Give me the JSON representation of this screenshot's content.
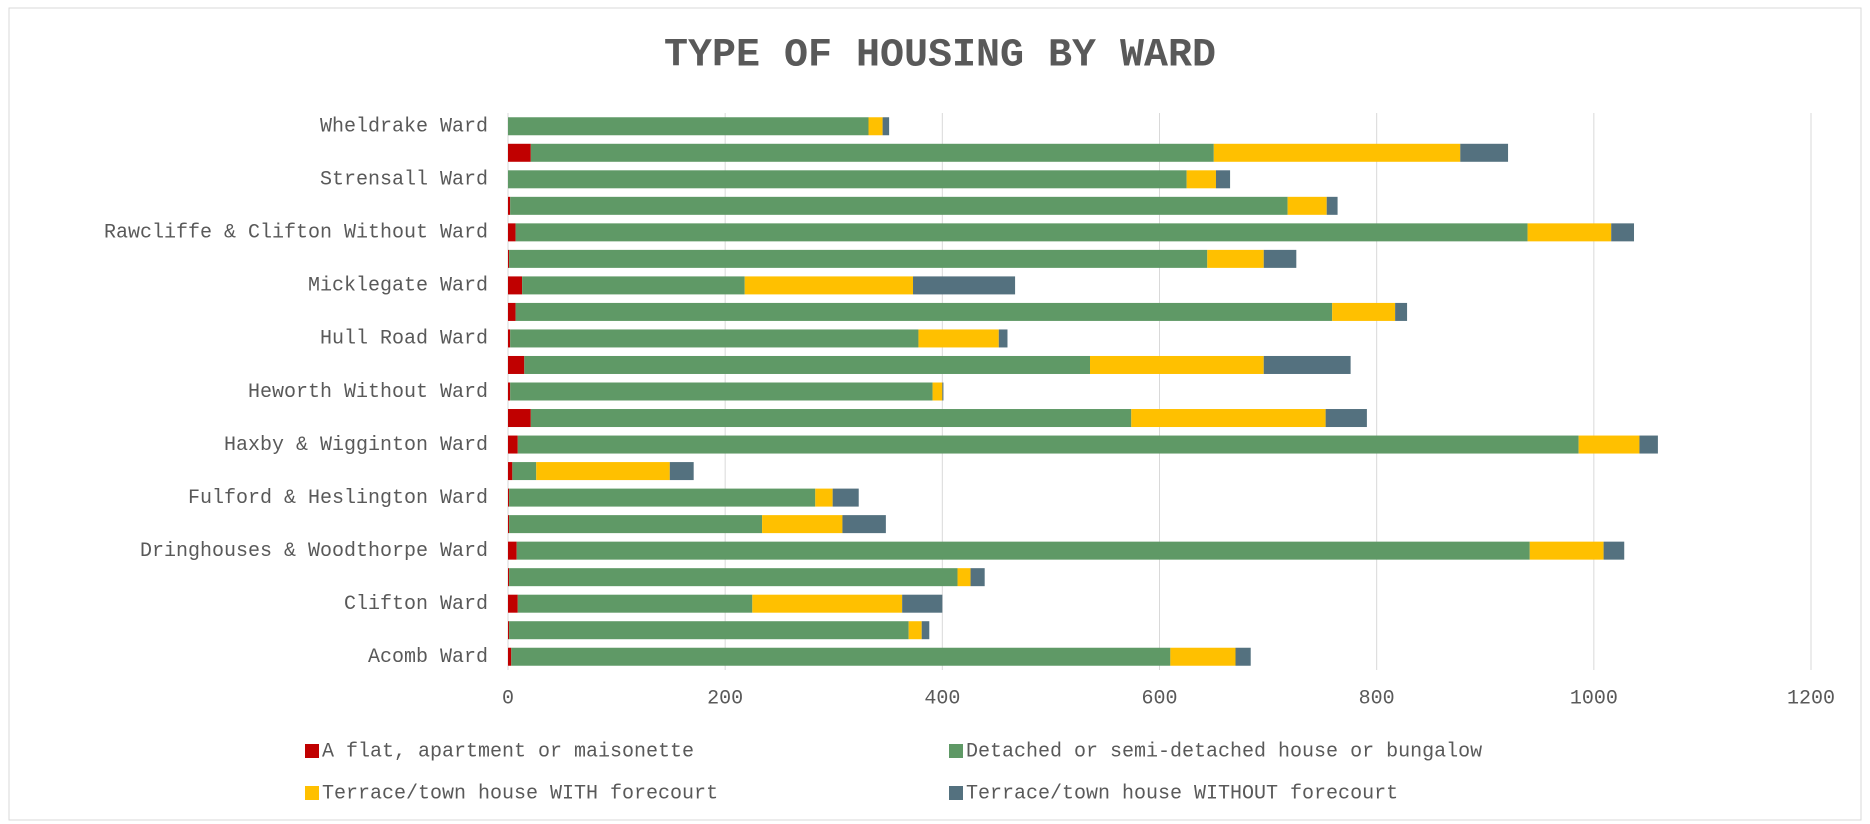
{
  "chart_data": {
    "type": "stacked_barh",
    "title": "TYPE OF HOUSING BY WARD",
    "categories": [
      "Acomb Ward",
      null,
      "Clifton Ward",
      null,
      "Dringhouses & Woodthorpe Ward",
      null,
      "Fulford & Heslington Ward",
      null,
      "Haxby & Wigginton Ward",
      null,
      "Heworth Without Ward",
      null,
      "Hull Road Ward",
      null,
      "Micklegate Ward",
      null,
      "Rawcliffe & Clifton Without Ward",
      null,
      "Strensall Ward",
      null,
      "Wheldrake Ward"
    ],
    "series": [
      {
        "name": "A flat, apartment or maisonette",
        "color": "#c00000",
        "values": [
          3,
          1,
          9,
          1,
          8,
          1,
          1,
          4,
          9,
          21,
          2,
          15,
          2,
          7,
          13,
          1,
          7,
          2,
          0,
          21,
          0
        ]
      },
      {
        "name": "Detached or semi-detached house or bungalow",
        "color": "#5f9966",
        "values": [
          607,
          368,
          216,
          413,
          933,
          233,
          282,
          22,
          977,
          553,
          389,
          521,
          376,
          752,
          205,
          643,
          932,
          716,
          625,
          629,
          332
        ]
      },
      {
        "name": "Terrace/town house WITH forecourt",
        "color": "#ffc000",
        "values": [
          60,
          12,
          138,
          12,
          68,
          74,
          16,
          123,
          56,
          179,
          9,
          160,
          74,
          58,
          155,
          52,
          77,
          36,
          27,
          227,
          13
        ]
      },
      {
        "name": "Terrace/town house WITHOUT forecourt",
        "color": "#54717f",
        "values": [
          14,
          7,
          37,
          13,
          19,
          40,
          24,
          22,
          17,
          38,
          1,
          80,
          8,
          11,
          94,
          30,
          21,
          10,
          13,
          44,
          6
        ]
      }
    ],
    "xlim": [
      0,
      1200
    ],
    "xticks": [
      0,
      200,
      400,
      600,
      800,
      1000,
      1200
    ],
    "grid": true,
    "legend": "bottom"
  }
}
